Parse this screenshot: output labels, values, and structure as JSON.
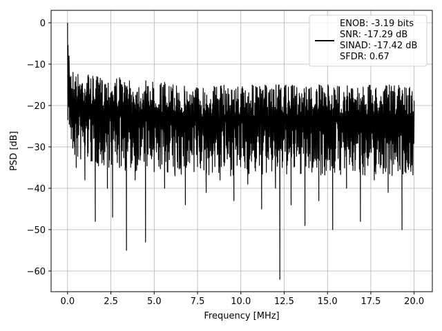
{
  "chart_data": {
    "type": "line",
    "title": "",
    "xlabel": "Frequency [MHz]",
    "ylabel": "PSD [dB]",
    "xlim": [
      -0.95,
      21.05
    ],
    "ylim": [
      -65,
      3
    ],
    "xticks": [
      0.0,
      2.5,
      5.0,
      7.5,
      10.0,
      12.5,
      15.0,
      17.5,
      20.0
    ],
    "xtick_labels": [
      "0.0",
      "2.5",
      "5.0",
      "7.5",
      "10.0",
      "12.5",
      "15.0",
      "17.5",
      "20.0"
    ],
    "yticks": [
      0,
      -10,
      -20,
      -30,
      -40,
      -50,
      -60
    ],
    "ytick_labels": [
      "0",
      "−10",
      "−20",
      "−30",
      "−40",
      "−50",
      "−60"
    ],
    "grid": true,
    "legend_placement": "top-right",
    "line_color": "#000000",
    "series": [
      {
        "name": "",
        "legend_lines": [
          "ENOB: -3.19 bits",
          "SNR: -17.29 dB",
          "SINAD: -17.42 dB",
          "SFDR: 0.67"
        ],
        "x": [
          0.0,
          0.05,
          0.1,
          0.15,
          0.2,
          0.3,
          0.4,
          0.5,
          0.6,
          0.8,
          1.0,
          1.2,
          1.5,
          1.6,
          1.8,
          2.0,
          2.3,
          2.5,
          2.6,
          2.8,
          3.0,
          3.3,
          3.4,
          3.6,
          3.9,
          4.2,
          4.5,
          4.7,
          5.0,
          5.3,
          5.6,
          5.9,
          6.2,
          6.5,
          6.8,
          7.0,
          7.3,
          7.6,
          8.0,
          8.4,
          8.8,
          9.2,
          9.6,
          10.0,
          10.4,
          10.8,
          11.2,
          11.6,
          12.0,
          12.25,
          12.5,
          12.9,
          13.3,
          13.7,
          14.1,
          14.5,
          14.9,
          15.3,
          15.7,
          16.1,
          16.5,
          16.9,
          17.3,
          17.7,
          18.1,
          18.5,
          18.9,
          19.3,
          19.7,
          20.0
        ],
        "y": [
          0,
          -8,
          -12,
          -16,
          -21,
          -24,
          -30,
          -35,
          -18,
          -25,
          -38,
          -22,
          -28,
          -48,
          -20,
          -30,
          -40,
          -24,
          -47,
          -26,
          -35,
          -26,
          -55,
          -28,
          -38,
          -31,
          -53,
          -26,
          -36,
          -30,
          -40,
          -28,
          -37,
          -29,
          -44,
          -27,
          -36,
          -30,
          -41,
          -29,
          -38,
          -30,
          -43,
          -28,
          -39,
          -31,
          -45,
          -33,
          -40,
          -62,
          -28,
          -44,
          -30,
          -49,
          -31,
          -43,
          -33,
          -50,
          -32,
          -40,
          -29,
          -48,
          -32,
          -38,
          -30,
          -41,
          -33,
          -50,
          -34,
          -22
        ],
        "upper_envelope": [
          -2,
          -4,
          -6,
          -8,
          -10,
          -11,
          -11,
          -12,
          -12,
          -12,
          -12,
          -12,
          -13,
          -13,
          -13,
          -13,
          -13,
          -13,
          -13,
          -13,
          -13,
          -14,
          -14,
          -14,
          -14,
          -14,
          -14,
          -14,
          -14,
          -14,
          -14,
          -15,
          -15,
          -15,
          -15,
          -15,
          -15,
          -15,
          -15,
          -15,
          -15,
          -15,
          -15,
          -15,
          -15,
          -15,
          -15,
          -15,
          -15,
          -15,
          -15,
          -15,
          -15,
          -15,
          -15,
          -15,
          -15,
          -15,
          -15,
          -15,
          -15,
          -15,
          -15,
          -15,
          -15,
          -15,
          -15,
          -15,
          -15,
          -15
        ]
      }
    ]
  }
}
